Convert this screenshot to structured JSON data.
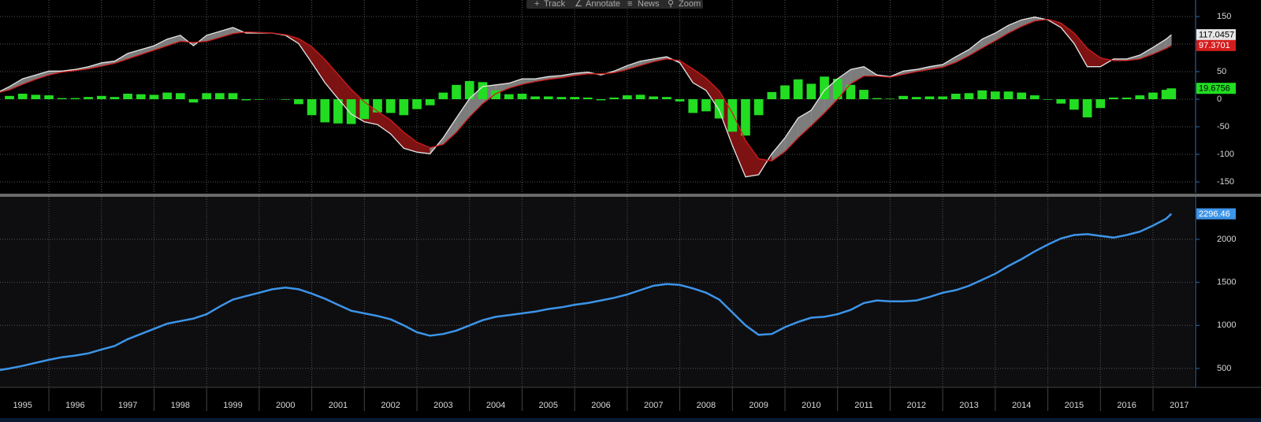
{
  "toolbar": [
    "Track",
    "Annotate",
    "News",
    "Zoom"
  ],
  "chart_data": [
    {
      "type": "line",
      "x": [
        1995,
        1995.25,
        1995.5,
        1995.75,
        1996,
        1996.25,
        1996.5,
        1996.75,
        1997,
        1997.25,
        1997.5,
        1997.75,
        1998,
        1998.25,
        1998.5,
        1998.75,
        1999,
        1999.25,
        1999.5,
        1999.75,
        2000,
        2000.25,
        2000.5,
        2000.75,
        2001,
        2001.25,
        2001.5,
        2001.75,
        2002,
        2002.25,
        2002.5,
        2002.75,
        2003,
        2003.25,
        2003.5,
        2003.75,
        2004,
        2004.25,
        2004.5,
        2004.75,
        2005,
        2005.25,
        2005.5,
        2005.75,
        2006,
        2006.25,
        2006.5,
        2006.75,
        2007,
        2007.25,
        2007.5,
        2007.75,
        2008,
        2008.25,
        2008.5,
        2008.75,
        2009,
        2009.25,
        2009.5,
        2009.75,
        2010,
        2010.25,
        2010.5,
        2010.75,
        2011,
        2011.25,
        2011.5,
        2011.75,
        2012,
        2012.25,
        2012.5,
        2012.75,
        2013,
        2013.25,
        2013.5,
        2013.75,
        2014,
        2014.25,
        2014.5,
        2014.75,
        2015,
        2015.25,
        2015.5,
        2015.75,
        2016,
        2016.25,
        2016.5,
        2016.75,
        2017,
        2017.25,
        2017.35
      ],
      "series": [
        {
          "type": "line",
          "color": "#e6e6e6",
          "values": [
            11,
            23,
            37,
            44,
            51,
            51,
            54,
            59,
            66,
            69,
            83,
            90,
            97,
            109,
            116,
            97,
            116,
            123,
            130,
            120,
            120,
            120,
            116,
            101,
            66,
            30,
            1,
            -27,
            -41,
            -46,
            -63,
            -89,
            -96,
            -99,
            -70,
            -34,
            1,
            23,
            26,
            29,
            37,
            37,
            41,
            43,
            47,
            49,
            44,
            51,
            61,
            69,
            73,
            77,
            66,
            30,
            16,
            -20,
            -84,
            -141,
            -137,
            -99,
            -70,
            -34,
            -20,
            16,
            37,
            54,
            59,
            44,
            41,
            51,
            54,
            59,
            63,
            77,
            90,
            109,
            120,
            134,
            144,
            149,
            144,
            130,
            101,
            59,
            59,
            73,
            73,
            80,
            94,
            109,
            117.0457
          ]
        },
        {
          "type": "line",
          "color": "#d41c1c",
          "values": [
            11,
            17,
            27,
            36,
            44,
            49,
            52,
            55,
            60,
            65,
            73,
            81,
            89,
            97,
            105,
            103,
            105,
            112,
            119,
            122,
            121,
            120,
            117,
            110,
            95,
            72,
            45,
            18,
            -5,
            -22,
            -38,
            -60,
            -78,
            -88,
            -82,
            -60,
            -32,
            -8,
            10,
            20,
            27,
            32,
            36,
            39,
            43,
            46,
            46,
            48,
            54,
            61,
            68,
            73,
            70,
            55,
            38,
            15,
            -25,
            -75,
            -108,
            -112,
            -95,
            -70,
            -48,
            -25,
            0,
            28,
            42,
            42,
            40,
            45,
            50,
            54,
            58,
            67,
            79,
            93,
            106,
            120,
            132,
            142,
            145,
            138,
            120,
            92,
            75,
            70,
            70,
            73,
            82,
            92,
            97.3701
          ]
        },
        {
          "type": "bar",
          "color": "#22dd22",
          "values": [
            0,
            6,
            10,
            8,
            7,
            2,
            2,
            4,
            6,
            4,
            10,
            9,
            8,
            12,
            11,
            -6,
            11,
            11,
            11,
            -2,
            -1,
            0,
            -1,
            -9,
            -29,
            -42,
            -44,
            -45,
            -36,
            -24,
            -25,
            -29,
            -18,
            -11,
            12,
            26,
            33,
            31,
            16,
            9,
            10,
            5,
            5,
            4,
            4,
            3,
            -2,
            3,
            7,
            8,
            5,
            4,
            -4,
            -25,
            -22,
            -35,
            -59,
            -66,
            -29,
            13,
            25,
            36,
            28,
            41,
            37,
            26,
            17,
            2,
            1,
            6,
            4,
            5,
            5,
            10,
            11,
            16,
            14,
            14,
            12,
            7,
            -1,
            -8,
            -19,
            -33,
            -16,
            3,
            3,
            7,
            12,
            17,
            19.6756
          ]
        }
      ],
      "xlim": [
        1995.07,
        2017.78
      ],
      "xgrid": [
        1996,
        1997,
        1998,
        1999,
        2000,
        2001,
        2002,
        2003,
        2004,
        2005,
        2006,
        2007,
        2008,
        2009,
        2010,
        2011,
        2012,
        2013,
        2014,
        2015,
        2016,
        2017
      ],
      "ylim": [
        -170,
        180
      ],
      "yticks": [
        150,
        100,
        50,
        0,
        -50,
        -100,
        -150
      ],
      "grid": true
    },
    {
      "type": "line",
      "x": [
        1995,
        1995.25,
        1995.5,
        1995.75,
        1996,
        1996.25,
        1996.5,
        1996.75,
        1997,
        1997.25,
        1997.5,
        1997.75,
        1998,
        1998.25,
        1998.5,
        1998.75,
        1999,
        1999.25,
        1999.5,
        1999.75,
        2000,
        2000.25,
        2000.5,
        2000.75,
        2001,
        2001.25,
        2001.5,
        2001.75,
        2002,
        2002.25,
        2002.5,
        2002.75,
        2003,
        2003.25,
        2003.5,
        2003.75,
        2004,
        2004.25,
        2004.5,
        2004.75,
        2005,
        2005.25,
        2005.5,
        2005.75,
        2006,
        2006.25,
        2006.5,
        2006.75,
        2007,
        2007.25,
        2007.5,
        2007.75,
        2008,
        2008.25,
        2008.5,
        2008.75,
        2009,
        2009.25,
        2009.5,
        2009.75,
        2010,
        2010.25,
        2010.5,
        2010.75,
        2011,
        2011.25,
        2011.5,
        2011.75,
        2012,
        2012.25,
        2012.5,
        2012.75,
        2013,
        2013.25,
        2013.5,
        2013.75,
        2014,
        2014.25,
        2014.5,
        2014.75,
        2015,
        2015.25,
        2015.5,
        2015.75,
        2016,
        2016.25,
        2016.5,
        2016.75,
        2017,
        2017.25,
        2017.35
      ],
      "series": [
        {
          "type": "line",
          "color": "#3d94e8",
          "values": [
            475,
            500,
            530,
            565,
            600,
            630,
            650,
            675,
            720,
            760,
            840,
            900,
            960,
            1020,
            1050,
            1080,
            1130,
            1220,
            1300,
            1340,
            1380,
            1420,
            1440,
            1420,
            1370,
            1310,
            1240,
            1170,
            1140,
            1110,
            1070,
            1000,
            920,
            880,
            900,
            940,
            1000,
            1060,
            1100,
            1120,
            1140,
            1160,
            1190,
            1210,
            1240,
            1260,
            1290,
            1320,
            1360,
            1410,
            1460,
            1480,
            1470,
            1430,
            1380,
            1300,
            1150,
            1000,
            890,
            900,
            980,
            1040,
            1090,
            1100,
            1130,
            1180,
            1260,
            1290,
            1280,
            1280,
            1290,
            1330,
            1380,
            1410,
            1460,
            1530,
            1600,
            1690,
            1770,
            1860,
            1940,
            2010,
            2050,
            2060,
            2040,
            2020,
            2050,
            2090,
            2160,
            2240,
            2296.46
          ]
        }
      ],
      "xlim": [
        1995.07,
        2017.78
      ],
      "xgrid": [
        1996,
        1997,
        1998,
        1999,
        2000,
        2001,
        2002,
        2003,
        2004,
        2005,
        2006,
        2007,
        2008,
        2009,
        2010,
        2011,
        2012,
        2013,
        2014,
        2015,
        2016,
        2017
      ],
      "xticks": [
        {
          "value": 1995.5,
          "label": "1995"
        },
        {
          "value": 1996.5,
          "label": "1996"
        },
        {
          "value": 1997.5,
          "label": "1997"
        },
        {
          "value": 1998.5,
          "label": "1998"
        },
        {
          "value": 1999.5,
          "label": "1999"
        },
        {
          "value": 2000.5,
          "label": "2000"
        },
        {
          "value": 2001.5,
          "label": "2001"
        },
        {
          "value": 2002.5,
          "label": "2002"
        },
        {
          "value": 2003.5,
          "label": "2003"
        },
        {
          "value": 2004.5,
          "label": "2004"
        },
        {
          "value": 2005.5,
          "label": "2005"
        },
        {
          "value": 2006.5,
          "label": "2006"
        },
        {
          "value": 2007.5,
          "label": "2007"
        },
        {
          "value": 2008.5,
          "label": "2008"
        },
        {
          "value": 2009.5,
          "label": "2009"
        },
        {
          "value": 2010.5,
          "label": "2010"
        },
        {
          "value": 2011.5,
          "label": "2011"
        },
        {
          "value": 2012.5,
          "label": "2012"
        },
        {
          "value": 2013.5,
          "label": "2013"
        },
        {
          "value": 2014.5,
          "label": "2014"
        },
        {
          "value": 2015.5,
          "label": "2015"
        },
        {
          "value": 2016.5,
          "label": "2016"
        },
        {
          "value": 2017.5,
          "label": "2017"
        }
      ],
      "ylim": [
        280,
        2494
      ],
      "yticks": [
        2000,
        1500,
        1000,
        500
      ],
      "grid": true
    }
  ]
}
